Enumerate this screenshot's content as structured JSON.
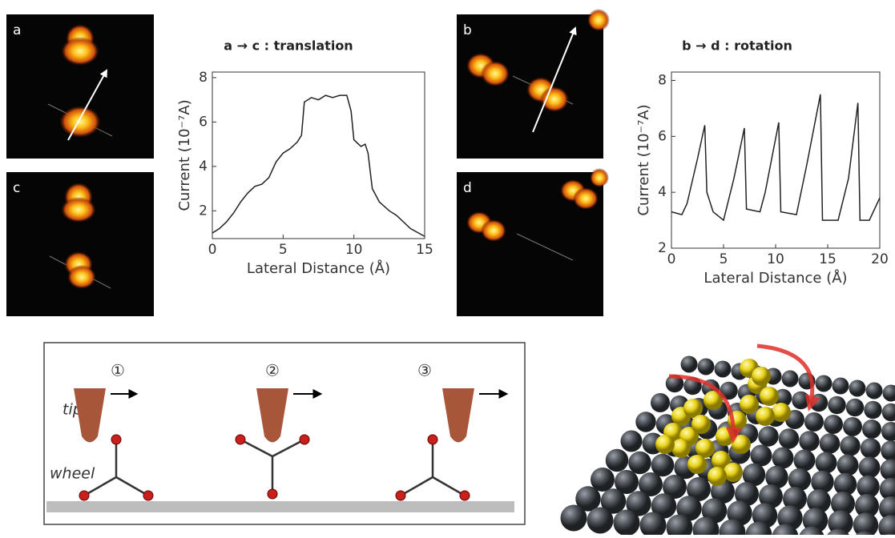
{
  "chart_data": [
    {
      "type": "line",
      "title": "a → c : translation",
      "x_label": "Lateral Distance (Å)",
      "y_label": "Current (10⁻⁷A)",
      "x": [
        0,
        0.5,
        1,
        1.5,
        2,
        2.5,
        3,
        3.5,
        4,
        4.5,
        5,
        5.5,
        6,
        6.3,
        6.5,
        7,
        7.5,
        8,
        8.5,
        9,
        9.5,
        9.8,
        10,
        10.5,
        10.8,
        11,
        11.3,
        11.8,
        12.5,
        13,
        14,
        15
      ],
      "values": [
        1.0,
        1.2,
        1.5,
        1.9,
        2.4,
        2.8,
        3.1,
        3.2,
        3.5,
        4.2,
        4.6,
        4.8,
        5.1,
        5.4,
        6.9,
        7.1,
        7.0,
        7.2,
        7.1,
        7.2,
        7.2,
        6.5,
        5.2,
        4.9,
        5.0,
        4.6,
        3.0,
        2.4,
        2.0,
        1.8,
        1.2,
        0.85
      ],
      "color": "#222222",
      "xlim": [
        0,
        15
      ],
      "ylim": [
        0.75,
        8.25
      ],
      "xticks": [
        0,
        5,
        10,
        15
      ],
      "yticks": [
        2,
        4,
        6,
        8
      ]
    },
    {
      "type": "line",
      "title": "b → d : rotation",
      "x_label": "Lateral Distance (Å)",
      "y_label": "Current (10⁻⁷A)",
      "x": [
        0,
        1,
        1.5,
        2.5,
        3.2,
        3.4,
        4,
        5,
        6,
        7,
        7.2,
        8.5,
        9,
        10.3,
        10.5,
        12,
        13,
        14.3,
        14.5,
        16,
        17,
        17.9,
        18.1,
        19,
        20
      ],
      "values": [
        3.3,
        3.2,
        3.6,
        5.2,
        6.4,
        4.0,
        3.3,
        3.0,
        4.5,
        6.3,
        3.4,
        3.3,
        4.0,
        6.5,
        3.3,
        3.2,
        5.0,
        7.5,
        3.0,
        3.0,
        4.5,
        7.2,
        3.0,
        3.0,
        3.8
      ],
      "color": "#222222",
      "xlim": [
        0,
        20
      ],
      "ylim": [
        2,
        8.3
      ],
      "xticks": [
        0,
        5,
        10,
        15,
        20
      ],
      "yticks": [
        2,
        4,
        6,
        8
      ]
    }
  ],
  "panels": [
    "a",
    "c",
    "b",
    "d"
  ],
  "schematic": {
    "steps": [
      "①",
      "②",
      "③"
    ],
    "tip_label": "tip",
    "wheel_label": "wheel"
  }
}
